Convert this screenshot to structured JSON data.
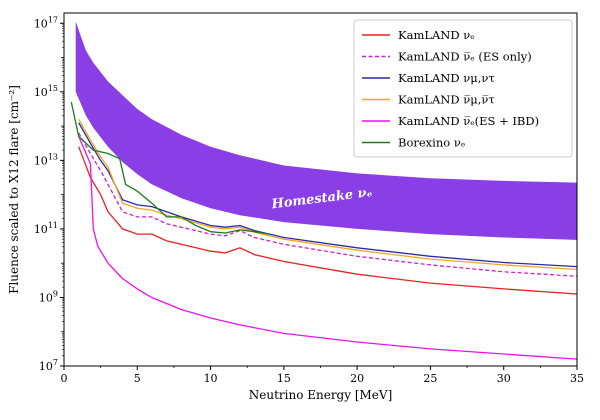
{
  "chart_data": {
    "type": "line",
    "xlabel": "Neutrino Energy [MeV]",
    "ylabel": "Fluence scaled to X12 flare [cm⁻²]",
    "xlim": [
      0,
      35
    ],
    "ylim_log10": [
      7,
      17.3
    ],
    "yscale": "log",
    "x_ticks": [
      0,
      5,
      10,
      15,
      20,
      25,
      30,
      35
    ],
    "y_ticks": [
      {
        "exp": 7,
        "label": "10^7"
      },
      {
        "exp": 9,
        "label": "10^9"
      },
      {
        "exp": 11,
        "label": "10^11"
      },
      {
        "exp": 13,
        "label": "10^13"
      },
      {
        "exp": 15,
        "label": "10^15"
      },
      {
        "exp": 17,
        "label": "10^17"
      }
    ],
    "legend_position": "top-right",
    "band": {
      "name": "Homestake νₑ",
      "label": "Homestake νₑ",
      "color": "#8a3ee6",
      "x": [
        0.8,
        1.5,
        2,
        3,
        4,
        5,
        6,
        8,
        10,
        12,
        15,
        20,
        25,
        30,
        35
      ],
      "upper_log10": [
        17.05,
        16.2,
        15.85,
        15.3,
        14.9,
        14.5,
        14.2,
        13.75,
        13.4,
        13.15,
        12.85,
        12.62,
        12.48,
        12.4,
        12.35
      ],
      "lower_log10": [
        15.0,
        14.3,
        13.95,
        13.4,
        12.95,
        12.6,
        12.3,
        11.9,
        11.6,
        11.4,
        11.2,
        11.0,
        10.85,
        10.75,
        10.68
      ]
    },
    "series": [
      {
        "name": "KamLAND νₑ",
        "color": "#e8221f",
        "dash": false,
        "x": [
          1,
          1.8,
          2.5,
          3,
          4,
          5,
          6,
          7,
          8,
          10,
          11,
          12,
          13,
          15,
          20,
          25,
          30,
          35
        ],
        "y_log10": [
          13.4,
          12.5,
          12.0,
          11.5,
          11.0,
          10.85,
          10.85,
          10.65,
          10.55,
          10.35,
          10.3,
          10.45,
          10.25,
          10.05,
          9.68,
          9.42,
          9.25,
          9.1
        ]
      },
      {
        "name": "KamLAND ν̅ₑ (ES only)",
        "color": "#cc22cc",
        "dash": true,
        "x": [
          1,
          1.8,
          2.5,
          3,
          4,
          5,
          6,
          7,
          8,
          10,
          11,
          12,
          13,
          15,
          20,
          25,
          30,
          35
        ],
        "y_log10": [
          13.8,
          13.2,
          12.7,
          12.3,
          11.5,
          11.35,
          11.35,
          11.15,
          11.05,
          10.85,
          10.8,
          10.95,
          10.75,
          10.55,
          10.2,
          9.95,
          9.75,
          9.62
        ]
      },
      {
        "name": "KamLAND νμ,ντ",
        "color": "#2a2aa8",
        "dash": false,
        "x": [
          1,
          1.8,
          2.5,
          3,
          4,
          5,
          6,
          7,
          8,
          10,
          11,
          12,
          13,
          15,
          20,
          25,
          30,
          35
        ],
        "y_log10": [
          14.1,
          13.5,
          13.0,
          12.7,
          11.85,
          11.7,
          11.65,
          11.5,
          11.35,
          11.1,
          11.05,
          11.1,
          10.95,
          10.75,
          10.45,
          10.2,
          10.02,
          9.9
        ]
      },
      {
        "name": "KamLAND ν̅μ,ν̅τ",
        "color": "#f5a623",
        "dash": false,
        "x": [
          1,
          1.8,
          2.5,
          3,
          4,
          5,
          6,
          7,
          8,
          10,
          11,
          12,
          13,
          15,
          20,
          25,
          30,
          35
        ],
        "y_log10": [
          14.2,
          13.6,
          13.1,
          12.8,
          11.75,
          11.6,
          11.55,
          11.4,
          11.3,
          11.05,
          11.0,
          11.05,
          10.9,
          10.7,
          10.38,
          10.12,
          9.95,
          9.82
        ]
      },
      {
        "name": "KamLAND ν̅ₑ(ES + IBD)",
        "color": "#ee11ee",
        "dash": false,
        "x": [
          1,
          1.8,
          2,
          2.3,
          3,
          4,
          5,
          6,
          8,
          10,
          12,
          15,
          20,
          25,
          30,
          35
        ],
        "y_log10": [
          13.7,
          12.9,
          11.0,
          10.5,
          10.0,
          9.55,
          9.25,
          9.0,
          8.65,
          8.4,
          8.2,
          7.95,
          7.7,
          7.5,
          7.35,
          7.2
        ]
      },
      {
        "name": "Borexino νₑ",
        "color": "#1f7a1f",
        "dash": false,
        "x": [
          0.5,
          1,
          2,
          3,
          3.8,
          4.2,
          5,
          6,
          7,
          8,
          9,
          10,
          11,
          12,
          13,
          14
        ],
        "y_log10": [
          14.7,
          13.7,
          13.3,
          13.2,
          13.05,
          12.3,
          12.1,
          11.75,
          11.35,
          11.35,
          11.1,
          10.92,
          10.88,
          10.97,
          10.92,
          10.85
        ]
      }
    ]
  }
}
